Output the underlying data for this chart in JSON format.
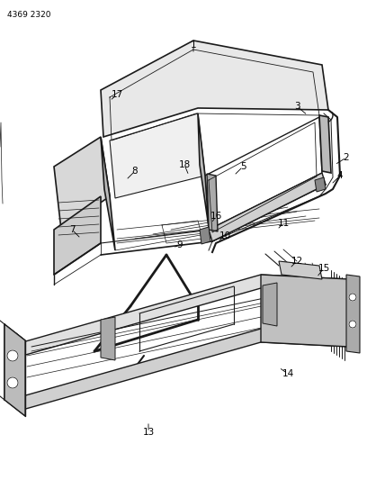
{
  "part_number": "4369 2320",
  "background_color": "#ffffff",
  "line_color": "#1a1a1a",
  "fig_width": 4.08,
  "fig_height": 5.33,
  "dpi": 100
}
